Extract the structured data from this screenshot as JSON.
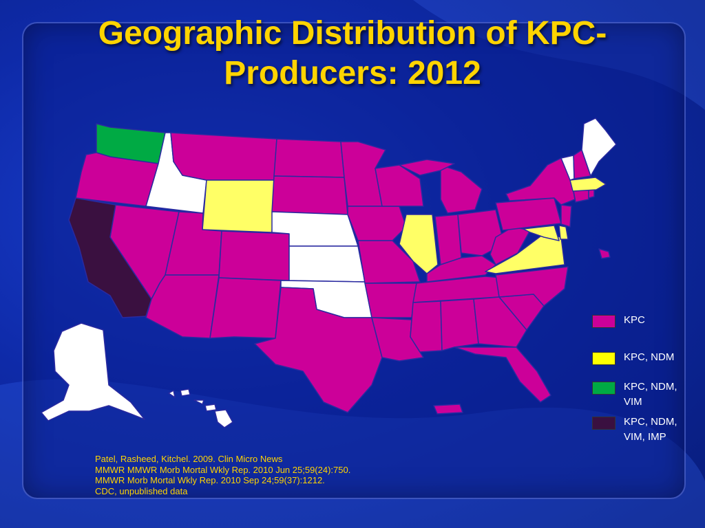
{
  "slide": {
    "title": "Geographic Distribution of KPC-Producers: 2012"
  },
  "legend": [
    {
      "label": "KPC",
      "color": "#cc0099"
    },
    {
      "label": "KPC, NDM",
      "color": "#ffff00"
    },
    {
      "label": "KPC, NDM,\nVIM",
      "color": "#00aa44"
    },
    {
      "label": "KPC, NDM,\nVIM,  IMP",
      "color": "#3a1040"
    }
  ],
  "map_colors": {
    "kpc": "#cc0099",
    "kpc_ndm": "#ffff66",
    "kpc_ndm_vim": "#00aa44",
    "kpc_ndm_vim_imp": "#3a1040",
    "none": "#ffffff"
  },
  "references": [
    "Patel, Rasheed, Kitchel. 2009. Clin Micro News",
    "MMWR MMWR Morb Mortal Wkly Rep. 2010 Jun 25;59(24):750.",
    "MMWR Morb Mortal Wkly Rep. 2010 Sep 24;59(37):1212.",
    "CDC, unpublished data"
  ]
}
